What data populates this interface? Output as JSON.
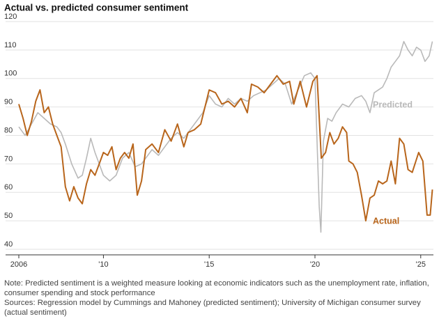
{
  "chart_data": {
    "type": "line",
    "title": "Actual vs. predicted consumer sentiment",
    "note": "Note: Predicted sentiment is a weighted measure looking at economic indicators such as the unemployment rate, inflation, consumer spending and stock performance",
    "source": "Sources: Regression model by Cummings and Mahoney (predicted sentiment); University of Michigan consumer survey (actual sentiment)",
    "xlim": [
      2006,
      2025.6
    ],
    "xticks": [
      2006,
      {
        "value": 2010,
        "label": "'10"
      },
      {
        "value": 2015,
        "label": "'15"
      },
      {
        "value": 2020,
        "label": "'20"
      },
      {
        "value": 2025,
        "label": "'25"
      }
    ],
    "ylim": [
      40,
      120
    ],
    "yticks": [
      40,
      50,
      60,
      70,
      80,
      90,
      100,
      110,
      120
    ],
    "grid": true,
    "series": [
      {
        "name": "Predicted",
        "color": "#b9b9b9",
        "x": [
          2006.0,
          2006.3,
          2006.6,
          2006.9,
          2007.2,
          2007.5,
          2007.8,
          2008.0,
          2008.2,
          2008.5,
          2008.8,
          2009.0,
          2009.2,
          2009.4,
          2009.6,
          2009.8,
          2010.0,
          2010.3,
          2010.6,
          2010.9,
          2011.2,
          2011.5,
          2011.8,
          2012.0,
          2012.3,
          2012.6,
          2012.9,
          2013.2,
          2013.5,
          2013.8,
          2014.1,
          2014.4,
          2014.7,
          2015.0,
          2015.3,
          2015.6,
          2015.9,
          2016.2,
          2016.5,
          2016.8,
          2017.1,
          2017.4,
          2017.7,
          2018.0,
          2018.3,
          2018.6,
          2018.9,
          2019.2,
          2019.5,
          2019.8,
          2020.0,
          2020.2,
          2020.28,
          2020.4,
          2020.6,
          2020.8,
          2021.0,
          2021.3,
          2021.6,
          2021.9,
          2022.2,
          2022.4,
          2022.6,
          2022.8,
          2023.0,
          2023.2,
          2023.4,
          2023.6,
          2023.8,
          2024.0,
          2024.2,
          2024.4,
          2024.6,
          2024.8,
          2025.0,
          2025.2,
          2025.4,
          2025.55
        ],
        "values": [
          83,
          80,
          84,
          88,
          86,
          84,
          83,
          81,
          77,
          70,
          65,
          66,
          72,
          79,
          74,
          70,
          66,
          64,
          66,
          72,
          74,
          69,
          70,
          72,
          75,
          73,
          76,
          79,
          81,
          79,
          82,
          85,
          88,
          94,
          91,
          90,
          93,
          91,
          93,
          92,
          94,
          95,
          96,
          98,
          100,
          98,
          91,
          96,
          101,
          102,
          100,
          55,
          46,
          78,
          86,
          85,
          88,
          91,
          90,
          93,
          94,
          92,
          88,
          95,
          96,
          97,
          100,
          104,
          106,
          108,
          113,
          110,
          108,
          111,
          110,
          106,
          108,
          113
        ]
      },
      {
        "name": "Actual",
        "color": "#b8651b",
        "x": [
          2006.0,
          2006.2,
          2006.4,
          2006.6,
          2006.8,
          2007.0,
          2007.2,
          2007.4,
          2007.6,
          2007.8,
          2008.0,
          2008.2,
          2008.4,
          2008.6,
          2008.8,
          2009.0,
          2009.2,
          2009.4,
          2009.6,
          2009.8,
          2010.0,
          2010.2,
          2010.4,
          2010.6,
          2010.8,
          2011.0,
          2011.2,
          2011.4,
          2011.6,
          2011.8,
          2012.0,
          2012.3,
          2012.6,
          2012.9,
          2013.2,
          2013.5,
          2013.8,
          2014.0,
          2014.3,
          2014.6,
          2014.9,
          2015.0,
          2015.3,
          2015.6,
          2015.9,
          2016.2,
          2016.5,
          2016.8,
          2017.0,
          2017.3,
          2017.6,
          2017.9,
          2018.2,
          2018.5,
          2018.8,
          2019.0,
          2019.3,
          2019.6,
          2019.9,
          2020.1,
          2020.3,
          2020.5,
          2020.7,
          2020.9,
          2021.1,
          2021.3,
          2021.5,
          2021.6,
          2021.8,
          2022.0,
          2022.2,
          2022.4,
          2022.6,
          2022.8,
          2023.0,
          2023.2,
          2023.4,
          2023.6,
          2023.8,
          2024.0,
          2024.2,
          2024.4,
          2024.6,
          2024.9,
          2025.1,
          2025.3,
          2025.45,
          2025.55
        ],
        "values": [
          91,
          86,
          80,
          85,
          92,
          96,
          88,
          90,
          84,
          80,
          76,
          62,
          57,
          62,
          58,
          56,
          63,
          68,
          66,
          70,
          74,
          73,
          76,
          68,
          72,
          74,
          72,
          77,
          59,
          64,
          75,
          77,
          74,
          82,
          78,
          84,
          76,
          81,
          82,
          84,
          93,
          96,
          95,
          91,
          92,
          90,
          93,
          88,
          98,
          97,
          95,
          98,
          101,
          98,
          99,
          91,
          99,
          90,
          99,
          101,
          72,
          74,
          81,
          77,
          79,
          83,
          81,
          71,
          70,
          67,
          59,
          50,
          58,
          59,
          64,
          63,
          64,
          71,
          63,
          79,
          77,
          68,
          67,
          74,
          71,
          52,
          52,
          61
        ]
      }
    ]
  }
}
